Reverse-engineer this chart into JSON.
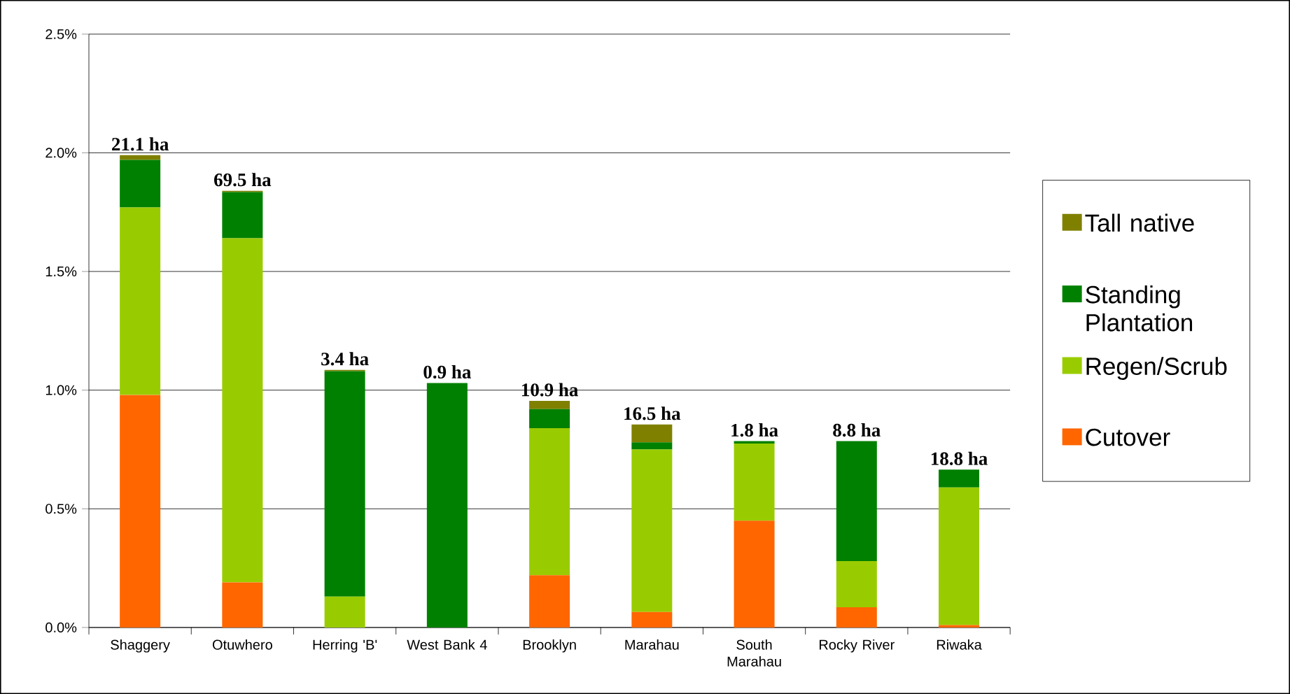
{
  "chart_data": {
    "type": "bar",
    "stacked": true,
    "categories": [
      "Shaggery",
      "Otuwhero",
      "Herring 'B'",
      "West Bank 4",
      "Brooklyn",
      "Marahau",
      "South Marahau",
      "Rocky River",
      "Riwaka"
    ],
    "series": [
      {
        "name": "Cutover",
        "color": "#ff6600",
        "values": [
          0.98,
          0.19,
          0,
          0,
          0.22,
          0.065,
          0.45,
          0.085,
          0.01
        ]
      },
      {
        "name": "Regen/Scrub",
        "color": "#99cc00",
        "values": [
          0.79,
          1.45,
          0.13,
          0,
          0.62,
          0.685,
          0.325,
          0.195,
          0.58
        ]
      },
      {
        "name": "Standing Plantation",
        "color": "#008000",
        "values": [
          0.2,
          0.195,
          0.95,
          1.03,
          0.08,
          0.03,
          0.01,
          0.505,
          0.075
        ]
      },
      {
        "name": "Tall native",
        "color": "#808000",
        "values": [
          0.02,
          0.005,
          0.005,
          0,
          0.035,
          0.075,
          0,
          0,
          0
        ]
      }
    ],
    "ylim": [
      0,
      2.5
    ],
    "yticks": [
      {
        "value": 0,
        "label": "0.0%"
      },
      {
        "value": 0.5,
        "label": "0.5%"
      },
      {
        "value": 1,
        "label": "1.0%"
      },
      {
        "value": 1.5,
        "label": "1.5%"
      },
      {
        "value": 2,
        "label": "2.0%"
      },
      {
        "value": 2.5,
        "label": "2.5%"
      }
    ],
    "grid": "y",
    "legend": "right",
    "annotations": [
      {
        "text": "21.1 ha",
        "x": "Shaggery",
        "y": 1.99
      },
      {
        "text": "69.5 ha",
        "x": "Otuwhero",
        "y": 1.84
      },
      {
        "text": "3.4 ha",
        "x": "Herring 'B'",
        "y": 1.085
      },
      {
        "text": "0.9 ha",
        "x": "West Bank 4",
        "y": 1.03
      },
      {
        "text": "10.9 ha",
        "x": "Brooklyn",
        "y": 0.955
      },
      {
        "text": "16.5 ha",
        "x": "Marahau",
        "y": 0.855
      },
      {
        "text": "1.8 ha",
        "x": "South Marahau",
        "y": 0.785
      },
      {
        "text": "8.8 ha",
        "x": "Rocky River",
        "y": 0.785
      },
      {
        "text": "18.8 ha",
        "x": "Riwaka",
        "y": 0.665
      }
    ]
  }
}
